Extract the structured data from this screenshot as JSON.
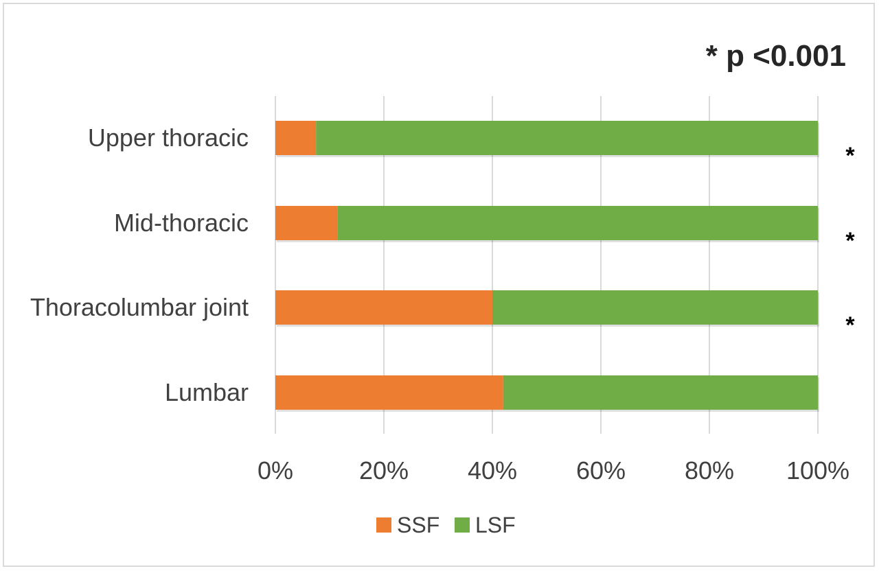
{
  "chart_data": {
    "type": "bar",
    "orientation": "horizontal",
    "stacked": "percent",
    "title": "",
    "xlabel": "",
    "ylabel": "",
    "categories": [
      "Upper thoracic",
      "Mid-thoracic",
      "Thoracolumbar joint",
      "Lumbar"
    ],
    "series": [
      {
        "name": "SSF",
        "values": [
          7.5,
          11.5,
          40,
          42
        ],
        "color": "#ED7D31"
      },
      {
        "name": "LSF",
        "values": [
          92.5,
          88.5,
          60,
          58
        ],
        "color": "#70AD47"
      }
    ],
    "xlim": [
      0,
      100
    ],
    "x_ticks": [
      "0%",
      "20%",
      "40%",
      "60%",
      "80%",
      "100%"
    ],
    "grid": "vertical",
    "legend": "bottom",
    "significance_markers": [
      "*",
      "*",
      "*",
      ""
    ],
    "annotation": "* p <0.001"
  }
}
